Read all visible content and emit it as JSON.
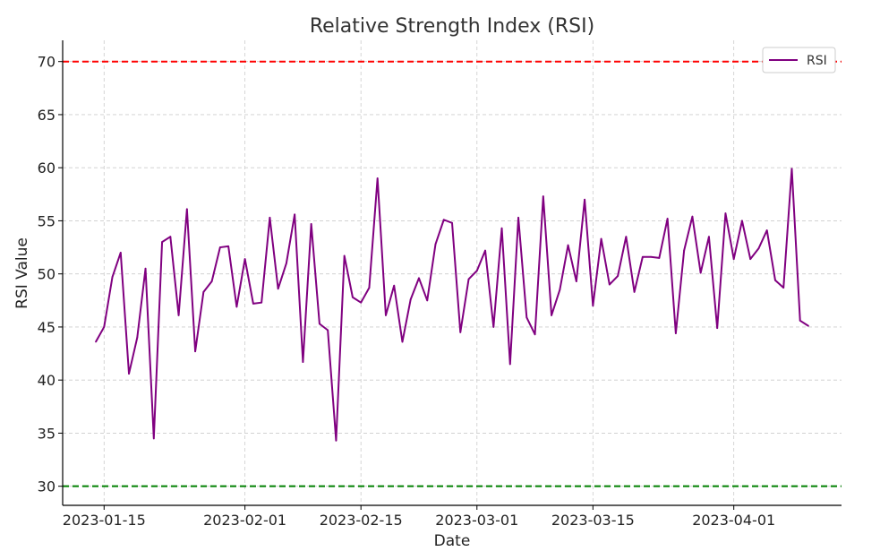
{
  "chart_data": {
    "type": "line",
    "title": "Relative Strength Index (RSI)",
    "xlabel": "Date",
    "ylabel": "RSI Value",
    "x_start": "2023-01-14",
    "x_end": "2023-04-09",
    "xlim": [
      "2023-01-10",
      "2023-04-14"
    ],
    "ylim": [
      28.2,
      72.0
    ],
    "x_ticks": [
      "2023-01-15",
      "2023-02-01",
      "2023-02-15",
      "2023-03-01",
      "2023-03-15",
      "2023-04-01"
    ],
    "y_ticks": [
      30,
      35,
      40,
      45,
      50,
      55,
      60,
      65,
      70
    ],
    "grid": true,
    "legend": {
      "position": "top-right",
      "entries": [
        "RSI"
      ]
    },
    "colors": {
      "series": "#800080",
      "overbought": "#ff0000",
      "oversold": "#008000",
      "grid": "#cccccc"
    },
    "reference_lines": [
      {
        "value": 70,
        "color": "#ff0000",
        "style": "dashed"
      },
      {
        "value": 30,
        "color": "#008000",
        "style": "dashed"
      }
    ],
    "series": [
      {
        "name": "RSI",
        "values": [
          43.6,
          45.0,
          49.7,
          52.0,
          40.6,
          44.0,
          50.5,
          34.5,
          53.0,
          53.5,
          46.1,
          56.1,
          42.7,
          48.3,
          49.3,
          52.5,
          52.6,
          46.9,
          51.4,
          47.2,
          47.3,
          55.3,
          48.6,
          51.0,
          55.6,
          41.7,
          54.7,
          45.3,
          44.7,
          34.3,
          51.7,
          47.8,
          47.3,
          48.7,
          59.0,
          46.1,
          48.9,
          43.6,
          47.6,
          49.6,
          47.5,
          52.8,
          55.1,
          54.8,
          44.5,
          49.5,
          50.3,
          52.2,
          45.0,
          54.3,
          41.5,
          55.3,
          45.9,
          44.3,
          57.3,
          46.1,
          48.5,
          52.7,
          49.3,
          57.0,
          47.0,
          53.3,
          49.0,
          49.8,
          53.5,
          48.3,
          51.6,
          51.6,
          51.5,
          55.2,
          44.4,
          52.2,
          55.4,
          50.1,
          53.5,
          44.9,
          55.7,
          51.4,
          55.0,
          51.4,
          52.4,
          54.1,
          49.4,
          48.7,
          59.9,
          45.6,
          45.1
        ]
      }
    ]
  }
}
